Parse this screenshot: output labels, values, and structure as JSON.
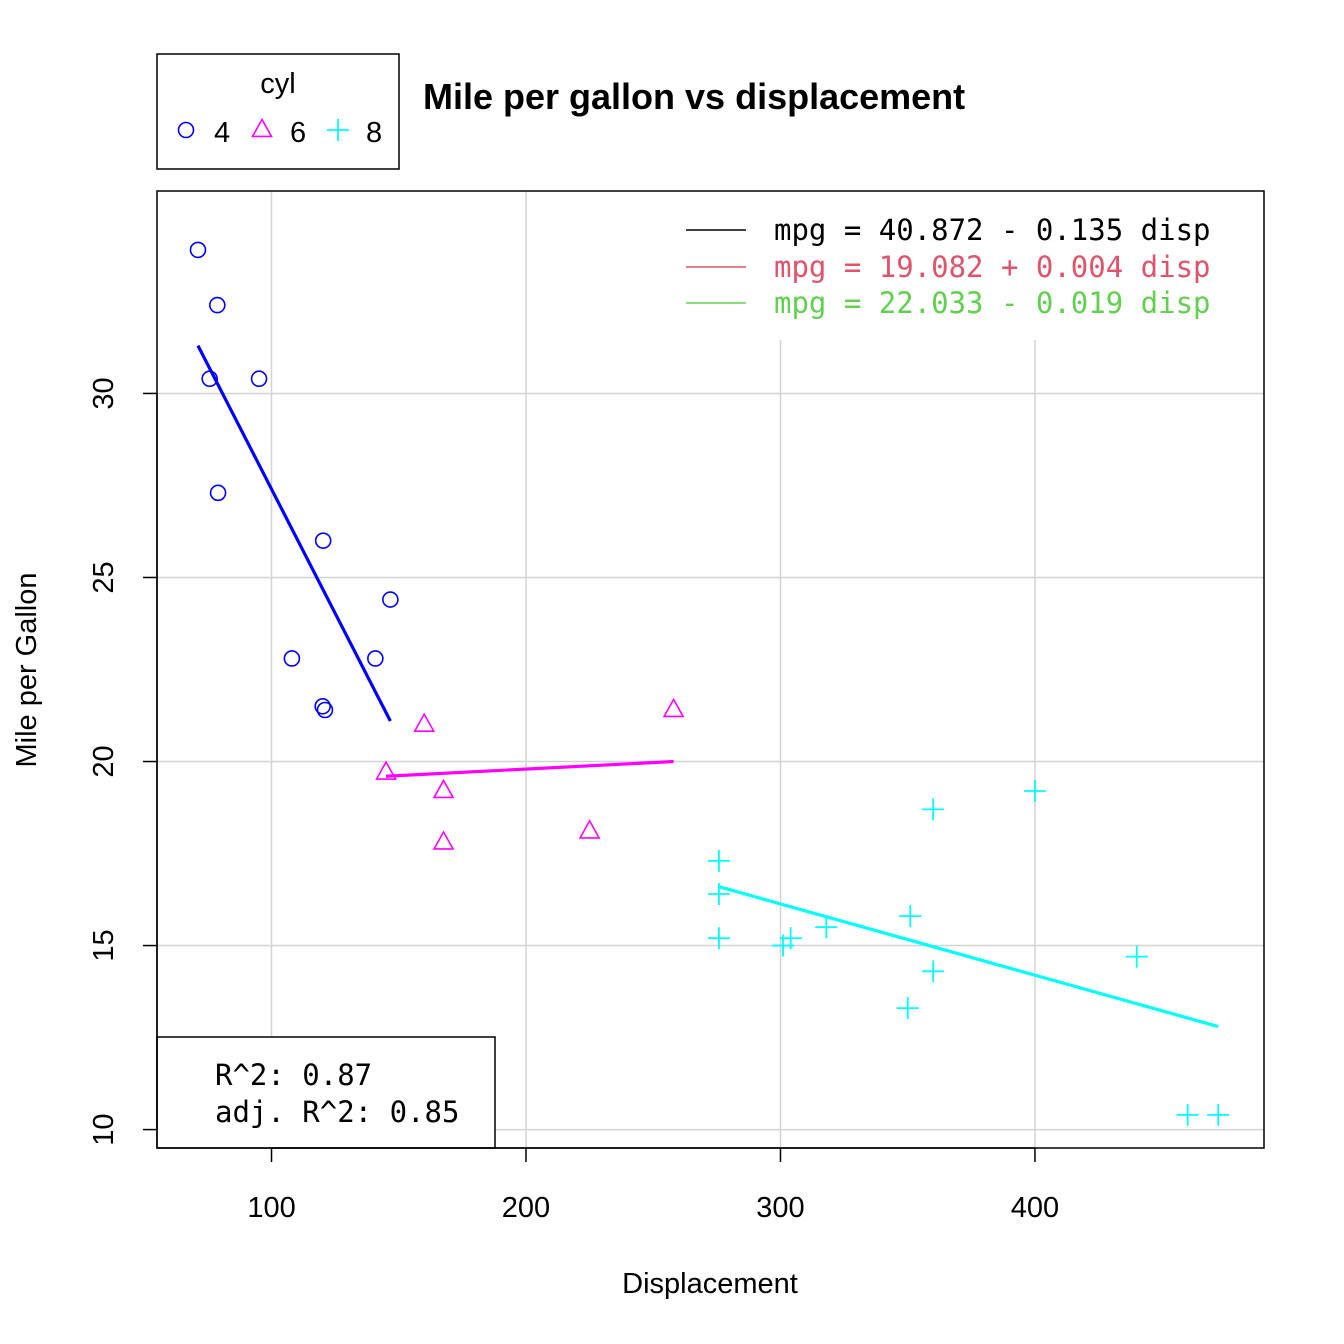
{
  "chart_data": {
    "type": "scatter",
    "title": "Mile per gallon vs displacement",
    "xlabel": "Displacement",
    "ylabel": "Mile per Gallon",
    "xlim": [
      55,
      490
    ],
    "ylim": [
      9.5,
      35.5
    ],
    "xticks": [
      100,
      200,
      300,
      400
    ],
    "yticks": [
      10,
      15,
      20,
      25,
      30
    ],
    "grid": true,
    "group_legend": {
      "title": "cyl",
      "placement": "top-left outside plot",
      "entries": [
        {
          "label": "4",
          "symbol": "circle",
          "color": "#0000FF"
        },
        {
          "label": "6",
          "symbol": "triangle",
          "color": "#FF00FF"
        },
        {
          "label": "8",
          "symbol": "plus",
          "color": "#00FFFF"
        }
      ]
    },
    "equation_legend": {
      "placement": "top-right",
      "entries": [
        {
          "text": "mpg = 40.872 - 0.135 disp",
          "color": "#000000"
        },
        {
          "text": "mpg = 19.082 + 0.004 disp",
          "color": "#DF536B"
        },
        {
          "text": "mpg = 22.033 - 0.019 disp",
          "color": "#61D04F"
        }
      ]
    },
    "stats_legend": {
      "placement": "bottom-left",
      "lines": [
        "R^2: 0.87",
        "adj. R^2: 0.85"
      ]
    },
    "series": [
      {
        "name": "4",
        "symbol": "circle",
        "color": "#0000FF",
        "points": [
          [
            108,
            22.8
          ],
          [
            146.7,
            24.4
          ],
          [
            140.8,
            22.8
          ],
          [
            78.7,
            32.4
          ],
          [
            75.7,
            30.4
          ],
          [
            71.1,
            33.9
          ],
          [
            120.1,
            21.5
          ],
          [
            79,
            27.3
          ],
          [
            120.3,
            26
          ],
          [
            95.1,
            30.4
          ],
          [
            121,
            21.4
          ]
        ],
        "fit": {
          "x": [
            71.1,
            146.7
          ],
          "y": [
            31.3,
            21.1
          ]
        }
      },
      {
        "name": "6",
        "symbol": "triangle",
        "color": "#FF00FF",
        "points": [
          [
            160,
            21
          ],
          [
            258,
            21.4
          ],
          [
            225,
            18.1
          ],
          [
            167.6,
            19.2
          ],
          [
            167.6,
            17.8
          ],
          [
            145,
            19.7
          ]
        ],
        "fit": {
          "x": [
            145,
            258
          ],
          "y": [
            19.6,
            20
          ]
        }
      },
      {
        "name": "8",
        "symbol": "plus",
        "color": "#00FFFF",
        "points": [
          [
            360,
            18.7
          ],
          [
            360,
            14.3
          ],
          [
            275.8,
            16.4
          ],
          [
            275.8,
            17.3
          ],
          [
            275.8,
            15.2
          ],
          [
            472,
            10.4
          ],
          [
            460,
            10.4
          ],
          [
            440,
            14.7
          ],
          [
            318,
            15.5
          ],
          [
            304,
            15.2
          ],
          [
            350,
            13.3
          ],
          [
            400,
            19.2
          ],
          [
            351,
            15.8
          ],
          [
            301,
            15
          ]
        ],
        "fit": {
          "x": [
            275.8,
            472
          ],
          "y": [
            16.6,
            12.8
          ]
        }
      }
    ]
  }
}
